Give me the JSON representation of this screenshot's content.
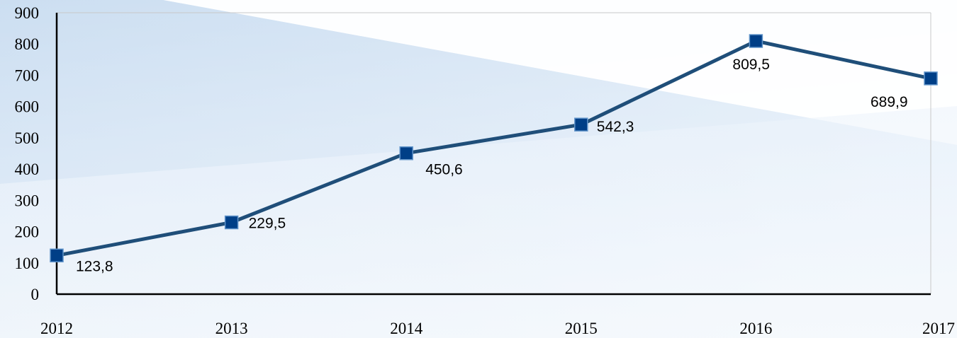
{
  "chart_data": {
    "type": "line",
    "x": [
      "2012",
      "2013",
      "2014",
      "2015",
      "2016",
      "2017"
    ],
    "y_ticks": [
      "0",
      "100",
      "200",
      "300",
      "400",
      "500",
      "600",
      "700",
      "800",
      "900"
    ],
    "ylim": [
      0,
      900
    ],
    "grid": false,
    "legend": "none",
    "series": [
      {
        "values": [
          123.8,
          229.5,
          450.6,
          542.3,
          809.5,
          689.9
        ],
        "labels": [
          "123,8",
          "229,5",
          "450,6",
          "542,3",
          "809,5",
          "689,9"
        ],
        "color": "#1F4E79",
        "marker_color": "#003F87",
        "marker": "square"
      }
    ],
    "title": "",
    "xlabel": "",
    "ylabel": ""
  },
  "colors": {
    "background_top_right": "#ffffff",
    "background_band": "#d4e4f4",
    "background_bottom": "#f3f8fd",
    "axis": "#000000",
    "plot_border": "#bfbfbf"
  }
}
